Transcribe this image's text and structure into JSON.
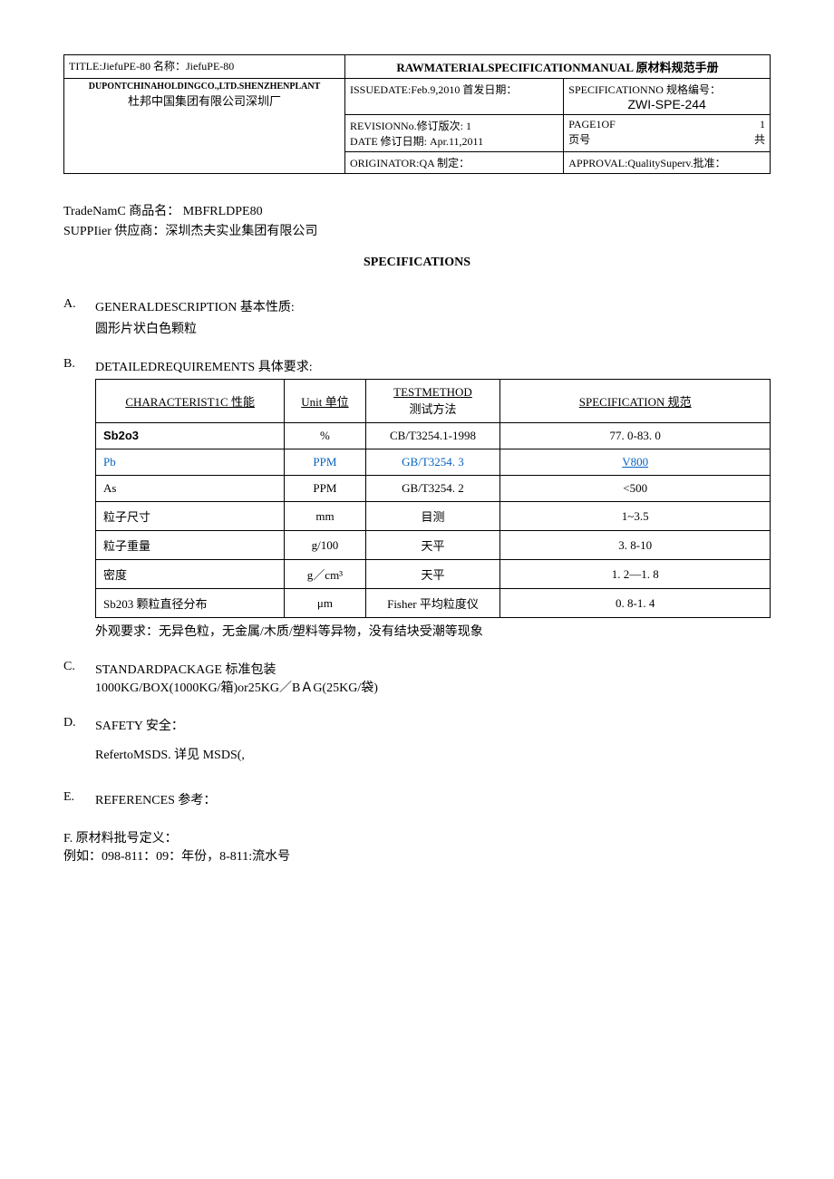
{
  "header": {
    "title_line": "TITLE:JiefuPE-80 名称：JiefuPE-80",
    "company_en": "DUPONTCHINAHOLDINGCO.,LTD.SHENZHENPLANT",
    "company_cn": "杜邦中国集团有限公司深圳厂",
    "manual_title": "RAWMATERIALSPECIFICATIONMANUAL 原材料规范手册",
    "spec_no_label": "SPECIFICATIONNO 规格编号：",
    "spec_no": "ZWI-SPE-244",
    "issue_date": "ISSUEDATE:Feb.9,2010 首发日期：",
    "revision_no": "REVISIONNo.修订版次: 1",
    "revision_date": "DATE 修订日期: Apr.11,2011",
    "page_of_label": "PAGE1OF",
    "page_of_num": "1",
    "page_label": "页号",
    "page_total_label": "共",
    "originator": "ORIGINATOR:QA 制定：",
    "approval": "APPROVAL:QualitySuperv.批准："
  },
  "trade": {
    "trade_name": "TradeNamC 商品名：  MBFRLDPE80",
    "supplier": "SUPPIier 供应商：深圳杰夫实业集团有限公司"
  },
  "spec_title": "SPECIFICATIONS",
  "section_a": {
    "letter": "A.",
    "title": "GENERALDESCRIPTION 基本性质:",
    "body": "圆形片状白色颗粒"
  },
  "section_b": {
    "letter": "B.",
    "title": "DETAILEDREQUIREMENTS 具体要求:",
    "headers": {
      "char": "CHARACTERIST1C 性能",
      "unit": "Unit 单位",
      "method_line1": "TESTMETHOD",
      "method_line2": "测试方法",
      "spec": "SPECIFICATION 规范"
    },
    "rows": [
      {
        "char": "Sb2o3",
        "char_bold": true,
        "unit": "%",
        "method": "CB/T3254.1-1998",
        "spec": "77. 0-83. 0",
        "blue": false
      },
      {
        "char": "Pb",
        "char_bold": false,
        "unit": "PPM",
        "method": "GB/T3254. 3",
        "spec": "V800",
        "blue": true,
        "spec_underline": true
      },
      {
        "char": "As",
        "char_bold": false,
        "unit": "PPM",
        "method": "GB/T3254. 2",
        "spec": "<500",
        "blue": false
      },
      {
        "char": "粒子尺寸",
        "char_bold": false,
        "unit": "mm",
        "method": "目测",
        "spec": "1~3.5",
        "blue": false
      },
      {
        "char": "粒子重量",
        "char_bold": false,
        "unit": "g/100",
        "method": "天平",
        "spec": "3. 8-10",
        "blue": false
      },
      {
        "char": "密度",
        "char_bold": false,
        "unit": "g／cm³",
        "method": "天平",
        "spec": "1. 2—1. 8",
        "blue": false
      },
      {
        "char": "Sb203 颗粒直径分布",
        "char_bold": false,
        "unit": "μm",
        "method": "Fisher 平均粒度仪",
        "spec": "0. 8-1. 4",
        "blue": false
      }
    ],
    "appearance_note": "外观要求：无异色粒，无金属/木质/塑料等异物，没有结块受潮等现象"
  },
  "section_c": {
    "letter": "C.",
    "title": "STANDARDPACKAGE 标准包装",
    "body": "1000KG/BOX(1000KG/箱)or25KG／BＡG(25KG/袋)"
  },
  "section_d": {
    "letter": "D.",
    "title": "SAFETY 安全：",
    "body": "RefertoMSDS. 详见 MSDS(,"
  },
  "section_e": {
    "letter": "E.",
    "title": "REFERENCES 参考："
  },
  "section_f": {
    "line1": "F. 原材料批号定义：",
    "line2": "例如：098-811：09：年份，8-811:流水号"
  }
}
